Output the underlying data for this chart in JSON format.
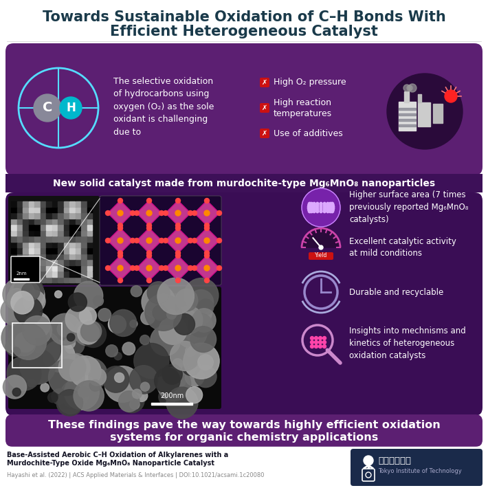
{
  "title_line1": "Towards Sustainable Oxidation of C–H Bonds With",
  "title_line2": "Efficient Heterogeneous Catalyst",
  "title_color": "#1a3a4a",
  "bg_color": "#ffffff",
  "purple_dark": "#5c1f72",
  "purple_section2": "#3a0d55",
  "purple_banner_mid": "#4a1a6a",
  "bottom_banner_bg": "#5c1f72",
  "challenge_text": "The selective oxidation\nof hydrocarbons using\noxygen (O₂) as the sole\noxidant is challenging\ndue to",
  "challenges": [
    "High O₂ pressure",
    "High reaction\ntemperatures",
    "Use of additives"
  ],
  "catalyst_banner": "New solid catalyst made from murdochite-type Mg₆MnO₈ nanoparticles",
  "benefits": [
    "Higher surface area (7 times\npreviously reported Mg₆MnO₈\ncatalysts)",
    "Excellent catalytic activity\nat mild conditions",
    "Durable and recyclable",
    "Insights into mechnisms and\nkinetics of heterogeneous\noxidation catalysts"
  ],
  "bottom_text_line1": "These findings pave the way towards highly efficient oxidation",
  "bottom_text_line2": "systems for organic chemistry applications",
  "footer_title_line1": "Base-Assisted Aerobic C–H Oxidation of Alkylarenes with a",
  "footer_title_line2": "Murdochite-Type Oxide Mg₆MnO₈ Nanoparticle Catalyst",
  "footer_citation": "Hayashi et al. (2022) | ACS Applied Materials & Interfaces | DOI:10.1021/acsami.1c20080"
}
